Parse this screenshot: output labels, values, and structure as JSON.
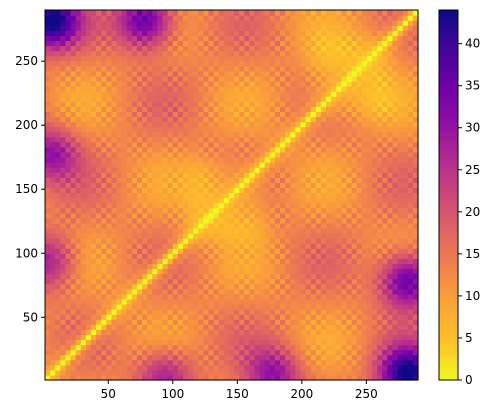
{
  "chart_data": {
    "type": "heatmap",
    "title": "",
    "xlabel": "",
    "ylabel": "",
    "colormap": "plasma",
    "reversed_colormap": true,
    "origin": "lower",
    "n": 290,
    "xlim": [
      1,
      290
    ],
    "ylim": [
      1,
      290
    ],
    "x_ticks": [
      50,
      100,
      150,
      200,
      250
    ],
    "y_ticks": [
      50,
      100,
      150,
      200,
      250
    ],
    "colorbar": {
      "min": 0,
      "max": 44,
      "ticks": [
        0,
        5,
        10,
        15,
        20,
        25,
        30,
        35,
        40
      ]
    },
    "matrix_kind": "symmetric distance matrix (zero diagonal)",
    "blocks_low_distance": [
      {
        "from": 110,
        "to": 175
      },
      {
        "from": 205,
        "to": 275
      }
    ],
    "peaks_high_distance": [
      {
        "x": 5,
        "y": 285,
        "value": 44
      },
      {
        "x": 285,
        "y": 5,
        "value": 44
      },
      {
        "x": 80,
        "y": 285,
        "value": 38
      },
      {
        "x": 285,
        "y": 80,
        "value": 38
      },
      {
        "x": 5,
        "y": 180,
        "value": 30
      },
      {
        "x": 180,
        "y": 5,
        "value": 30
      },
      {
        "x": 5,
        "y": 95,
        "value": 28
      },
      {
        "x": 95,
        "y": 5,
        "value": 28
      }
    ],
    "colors": {
      "low": "#f0f921",
      "mid": "#e16462",
      "high": "#0d0887"
    }
  }
}
